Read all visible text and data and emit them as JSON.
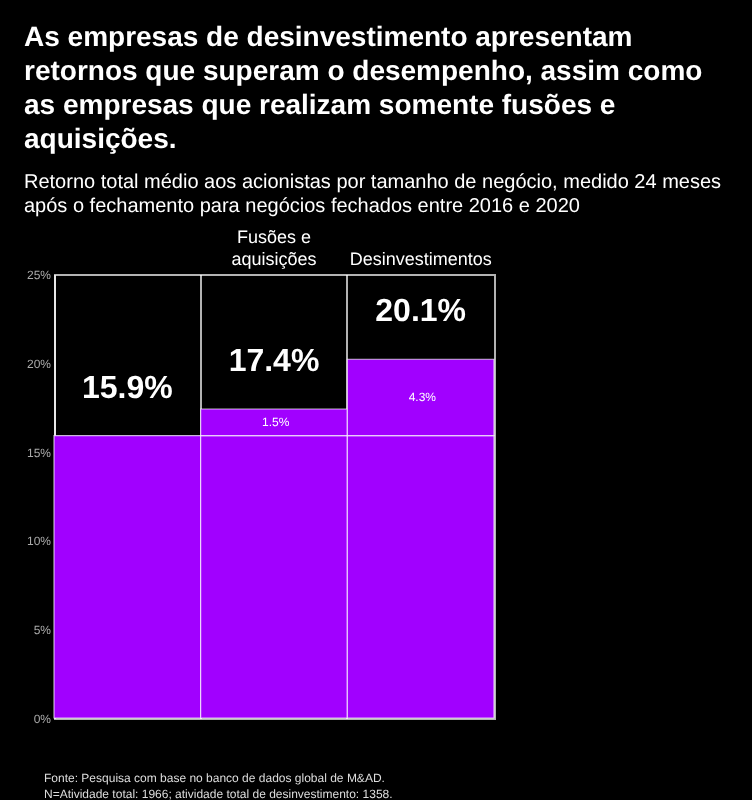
{
  "chart_data": {
    "type": "bar",
    "title": "As empresas de desinvestimento apresentam retornos que superam o desempenho, assim como as empresas que realizam somente fusões e aquisições.",
    "subtitle": "Retorno total médio aos acionistas por tamanho de negócio, medido 24 meses após o fechamento para negócios fechados entre 2016 e 2020",
    "categories": [
      null,
      "Fusões e aquisições",
      "Desinvestimentos"
    ],
    "stacked": true,
    "series": [
      {
        "color": "#a100ff",
        "values": [
          15.9,
          15.9,
          15.9
        ]
      },
      {
        "color": "#a100ff",
        "values": [
          null,
          1.5,
          4.3
        ],
        "value_labels": [
          null,
          "1.5%",
          "4.3%"
        ]
      }
    ],
    "totals": [
      "15.9%",
      "17.4%",
      "20.1%"
    ],
    "ylim": [
      0,
      25
    ],
    "yticks": [
      {
        "value": 0,
        "label": "0%"
      },
      {
        "value": 5,
        "label": "5%"
      },
      {
        "value": 10,
        "label": "10%"
      },
      {
        "value": 15,
        "label": "15%"
      },
      {
        "value": 20,
        "label": "20%"
      },
      {
        "value": 25,
        "label": "25%"
      }
    ],
    "grid": "x",
    "annotations": [
      "Fonte: Pesquisa com base no banco de dados global de M&AD.",
      "N=Atividade total: 1966; atividade total de desinvestimento: 1358."
    ]
  }
}
